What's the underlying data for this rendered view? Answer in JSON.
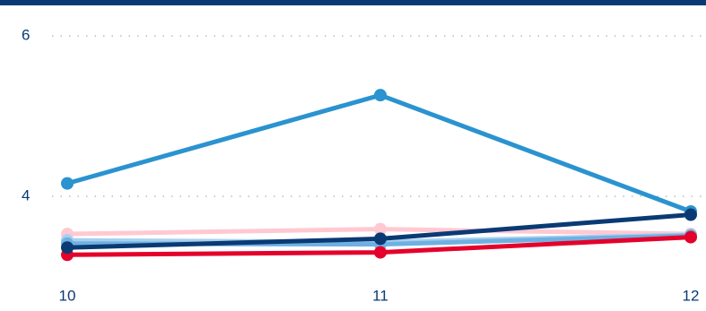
{
  "chart_data": {
    "type": "line",
    "categories": [
      "10",
      "11",
      "12"
    ],
    "series": [
      {
        "color": "#ffc9d2",
        "values": [
          3.53,
          3.59,
          3.53
        ]
      },
      {
        "color": "#a8d0ef",
        "values": [
          3.45,
          3.43,
          3.52
        ]
      },
      {
        "color": "#6fb0e2",
        "values": [
          3.41,
          3.4,
          3.51
        ]
      },
      {
        "color": "#2a93d0",
        "values": [
          4.16,
          5.26,
          3.81
        ]
      },
      {
        "color": "#e4002b",
        "values": [
          3.27,
          3.3,
          3.49
        ]
      },
      {
        "color": "#0a3a74",
        "values": [
          3.36,
          3.47,
          3.77
        ]
      }
    ],
    "ylim": [
      3.1,
      6.1
    ],
    "yticks": [
      4,
      6
    ],
    "grid": true
  }
}
